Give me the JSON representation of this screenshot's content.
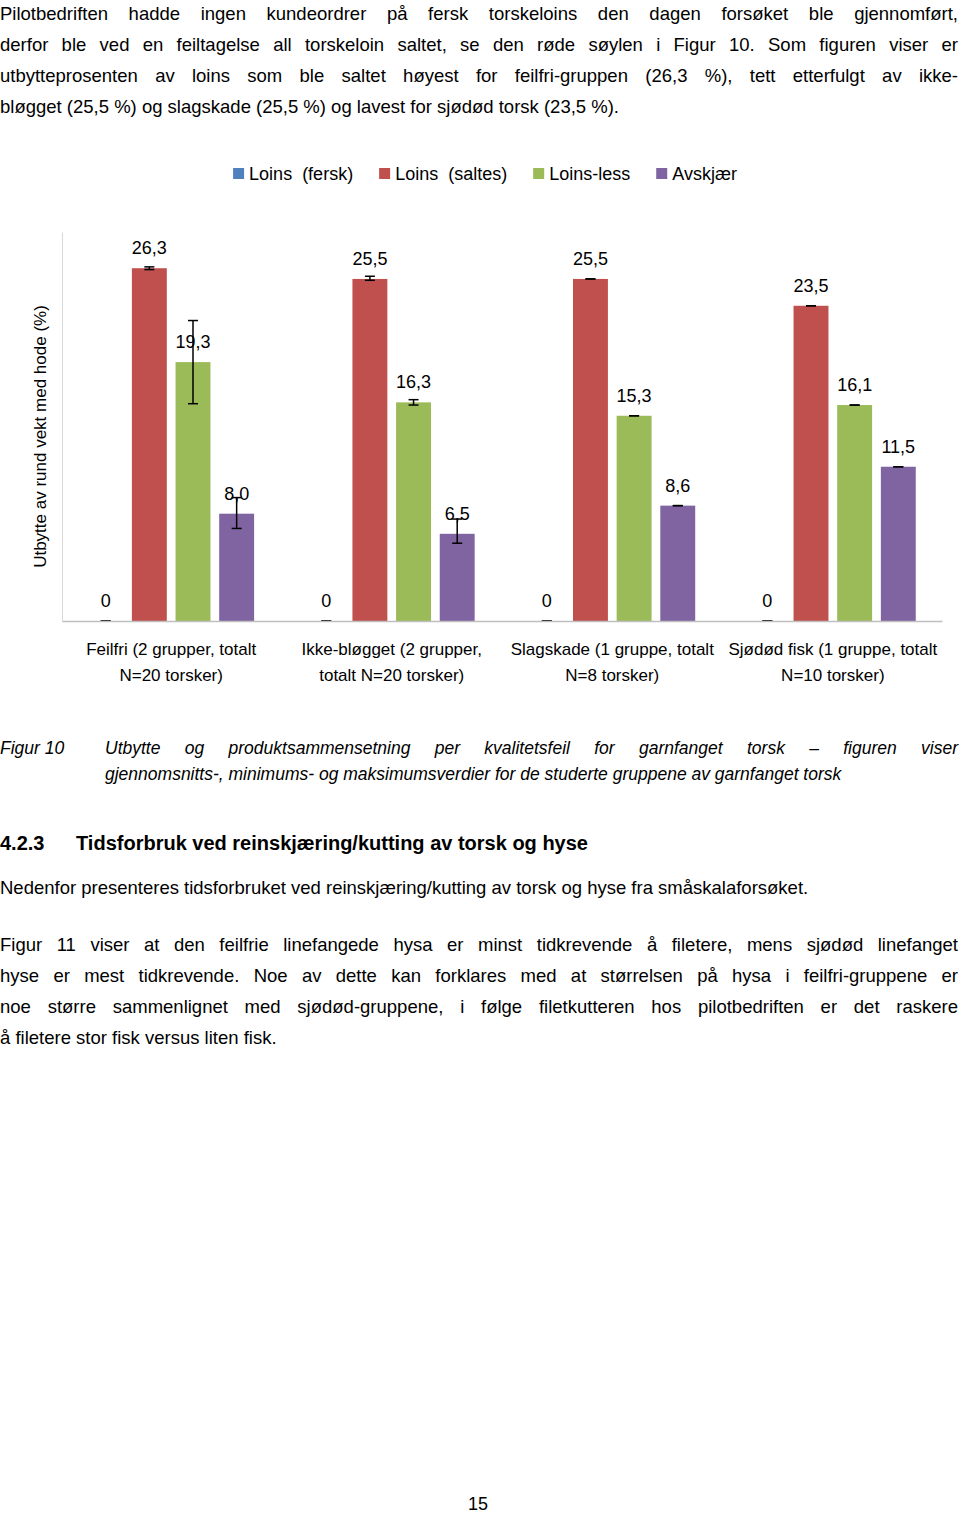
{
  "top_paragraph": {
    "lines": [
      "Pilotbedriften hadde ingen kundeordrer på fersk torskeloins den dagen forsøket ble gjennomført,",
      "derfor ble ved en feiltagelse all torskeloin saltet, se den røde søylen i Figur 10. Som figuren viser er",
      "utbytteprosenten av loins som ble saltet høyest for feilfri-gruppen (26,3 %), tett etterfulgt av ikke-",
      "bløgget (25,5 %) og slagskade (25,5 %) og lavest for sjødød torsk (23,5 %)."
    ]
  },
  "chart_data": {
    "type": "bar",
    "y_label": "Utbytte av rund vekt med hode (%)",
    "categories": [
      "Feilfri (2 grupper, totalt N=20 torsker)",
      "Ikke-bløgget (2 grupper, totalt N=20 torsker)",
      "Slagskade (1 gruppe, totalt N=8 torsker)",
      "Sjødød fisk (1 gruppe, totalt N=10 torsker)"
    ],
    "series": [
      {
        "name": "Loins  (fersk)",
        "color": "#4f81bd",
        "values": [
          0,
          0,
          0,
          0
        ],
        "value_labels": [
          "0",
          "0",
          "0",
          "0"
        ],
        "error_min": [
          0,
          0,
          0,
          0
        ],
        "error_max": [
          0,
          0,
          0,
          0
        ]
      },
      {
        "name": "Loins  (saltes)",
        "color": "#c0504d",
        "values": [
          26.3,
          25.5,
          25.5,
          23.5
        ],
        "value_labels": [
          "26,3",
          "25,5",
          "25,5",
          "23,5"
        ],
        "error_min": [
          26.2,
          25.4,
          25.5,
          23.5
        ],
        "error_max": [
          26.4,
          25.7,
          25.5,
          23.5
        ]
      },
      {
        "name": "Loins-less",
        "color": "#9bbb59",
        "values": [
          19.3,
          16.3,
          15.3,
          16.1
        ],
        "value_labels": [
          "19,3",
          "16,3",
          "15,3",
          "16,1"
        ],
        "error_min": [
          16.2,
          16.1,
          15.3,
          16.1
        ],
        "error_max": [
          22.4,
          16.5,
          15.3,
          16.1
        ]
      },
      {
        "name": "Avskjær",
        "color": "#8064a2",
        "values": [
          8.0,
          6.5,
          8.6,
          11.5
        ],
        "value_labels": [
          "8,0",
          "6,5",
          "8,6",
          "11,5"
        ],
        "error_min": [
          6.9,
          5.8,
          8.6,
          11.5
        ],
        "error_max": [
          9.2,
          7.6,
          8.6,
          11.5
        ]
      }
    ],
    "ylim": [
      0,
      29
    ],
    "tick_labels": false,
    "grid": false,
    "legend": "top",
    "data_labels": true
  },
  "caption": {
    "label": "Figur 10",
    "lines": [
      "Utbytte og produktsammensetning per kvalitetsfeil for garnfanget torsk – figuren viser",
      "gjennomsnitts-, minimums- og maksimumsverdier for de studerte gruppene av garnfanget torsk"
    ]
  },
  "heading": {
    "number": "4.2.3",
    "title": "Tidsforbruk ved reinskjæring/kutting av torsk og hyse"
  },
  "paragraphs": [
    {
      "lines": [
        "Nedenfor presenteres tidsforbruket ved reinskjæring/kutting av torsk og hyse fra småskalaforsøket."
      ]
    },
    {
      "lines": [
        "Figur 11 viser at den feilfrie linefangede hysa er minst tidkrevende å filetere, mens sjødød linefanget",
        "hyse er mest tidkrevende. Noe av dette kan forklares med at størrelsen på hysa i feilfri-gruppene er",
        "noe større sammenlignet med sjødød-gruppene, i følge filetkutteren hos pilotbedriften er det raskere",
        "å filetere stor fisk versus liten fisk."
      ]
    }
  ],
  "page_number": "15"
}
